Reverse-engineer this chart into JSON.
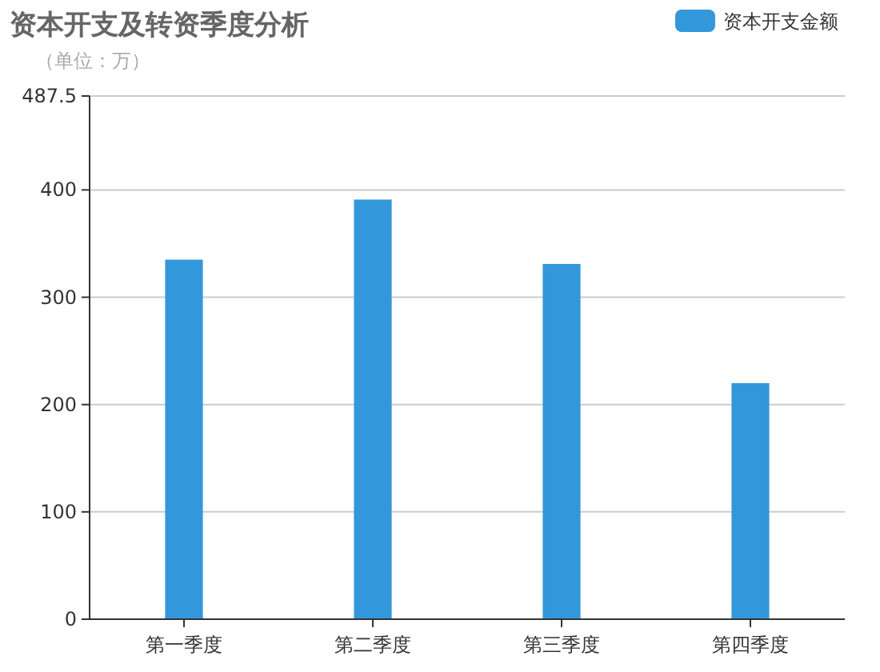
{
  "chart_data": {
    "type": "bar",
    "title": "资本开支及转资季度分析",
    "subtitle": "（单位：万）",
    "categories": [
      "第一季度",
      "第二季度",
      "第三季度",
      "第四季度"
    ],
    "series": [
      {
        "name": "资本开支金额",
        "color": "#3398db",
        "values": [
          335,
          391,
          331,
          220
        ]
      }
    ],
    "ylim": [
      0,
      487.5
    ],
    "yticks": [
      0,
      100,
      200,
      300,
      400,
      487.5
    ],
    "grid": "y",
    "legend": "top right"
  }
}
